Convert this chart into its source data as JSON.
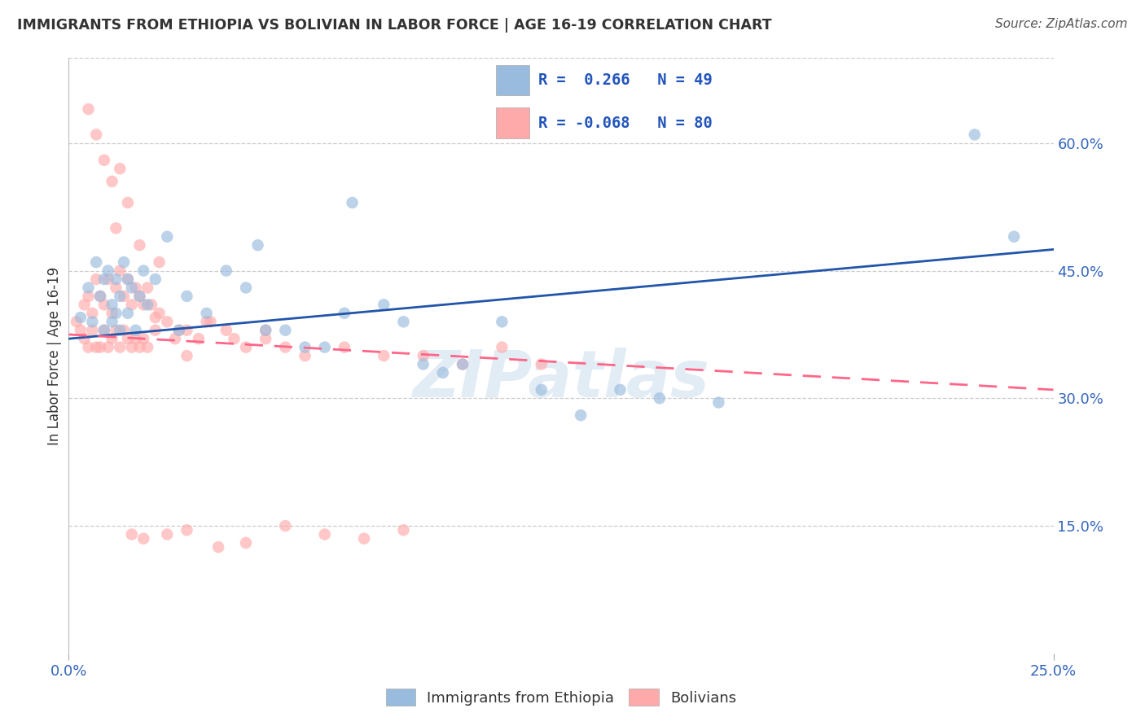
{
  "title": "IMMIGRANTS FROM ETHIOPIA VS BOLIVIAN IN LABOR FORCE | AGE 16-19 CORRELATION CHART",
  "source": "Source: ZipAtlas.com",
  "ylabel": "In Labor Force | Age 16-19",
  "legend_label_blue": "Immigrants from Ethiopia",
  "legend_label_pink": "Bolivians",
  "blue_color": "#99BBDD",
  "pink_color": "#FFAAAA",
  "trendline_blue_color": "#2255AA",
  "trendline_pink_color": "#FF6688",
  "watermark": "ZIPatlas",
  "xlim": [
    0.0,
    0.25
  ],
  "ylim": [
    0.0,
    0.7
  ],
  "yticks": [
    0.15,
    0.3,
    0.45,
    0.6
  ],
  "ytick_labels": [
    "15.0%",
    "30.0%",
    "45.0%",
    "60.0%"
  ],
  "xtick_left": "0.0%",
  "xtick_right": "25.0%",
  "blue_trend_x0": 0.0,
  "blue_trend_y0": 0.37,
  "blue_trend_x1": 0.25,
  "blue_trend_y1": 0.475,
  "pink_trend_x0": 0.0,
  "pink_trend_y0": 0.375,
  "pink_trend_x1": 0.25,
  "pink_trend_y1": 0.31,
  "legend_line1": "R =  0.266   N = 49",
  "legend_line2": "R = -0.068   N = 80",
  "blue_x": [
    0.003,
    0.005,
    0.006,
    0.007,
    0.008,
    0.009,
    0.009,
    0.01,
    0.011,
    0.011,
    0.012,
    0.012,
    0.013,
    0.013,
    0.014,
    0.015,
    0.015,
    0.016,
    0.017,
    0.018,
    0.019,
    0.02,
    0.022,
    0.025,
    0.028,
    0.03,
    0.035,
    0.04,
    0.045,
    0.05,
    0.055,
    0.06,
    0.065,
    0.07,
    0.08,
    0.09,
    0.1,
    0.11,
    0.12,
    0.13,
    0.14,
    0.15,
    0.165,
    0.072,
    0.085,
    0.095,
    0.048,
    0.23,
    0.24
  ],
  "blue_y": [
    0.395,
    0.43,
    0.39,
    0.46,
    0.42,
    0.44,
    0.38,
    0.45,
    0.41,
    0.39,
    0.44,
    0.4,
    0.42,
    0.38,
    0.46,
    0.44,
    0.4,
    0.43,
    0.38,
    0.42,
    0.45,
    0.41,
    0.44,
    0.49,
    0.38,
    0.42,
    0.4,
    0.45,
    0.43,
    0.38,
    0.38,
    0.36,
    0.36,
    0.4,
    0.41,
    0.34,
    0.34,
    0.39,
    0.31,
    0.28,
    0.31,
    0.3,
    0.295,
    0.53,
    0.39,
    0.33,
    0.48,
    0.61,
    0.49
  ],
  "pink_x": [
    0.002,
    0.003,
    0.004,
    0.004,
    0.005,
    0.005,
    0.006,
    0.006,
    0.007,
    0.007,
    0.008,
    0.008,
    0.009,
    0.009,
    0.01,
    0.01,
    0.011,
    0.011,
    0.012,
    0.012,
    0.013,
    0.013,
    0.014,
    0.014,
    0.015,
    0.015,
    0.016,
    0.016,
    0.017,
    0.017,
    0.018,
    0.018,
    0.019,
    0.019,
    0.02,
    0.02,
    0.021,
    0.022,
    0.023,
    0.025,
    0.027,
    0.03,
    0.033,
    0.036,
    0.04,
    0.045,
    0.05,
    0.055,
    0.06,
    0.07,
    0.08,
    0.09,
    0.1,
    0.11,
    0.12,
    0.022,
    0.028,
    0.035,
    0.042,
    0.05,
    0.005,
    0.007,
    0.009,
    0.011,
    0.013,
    0.015,
    0.012,
    0.018,
    0.023,
    0.03,
    0.016,
    0.019,
    0.025,
    0.03,
    0.038,
    0.045,
    0.055,
    0.065,
    0.075,
    0.085
  ],
  "pink_y": [
    0.39,
    0.38,
    0.41,
    0.37,
    0.42,
    0.36,
    0.4,
    0.38,
    0.44,
    0.36,
    0.42,
    0.36,
    0.41,
    0.38,
    0.44,
    0.36,
    0.4,
    0.37,
    0.43,
    0.38,
    0.45,
    0.36,
    0.42,
    0.38,
    0.44,
    0.37,
    0.41,
    0.36,
    0.43,
    0.37,
    0.42,
    0.36,
    0.41,
    0.37,
    0.43,
    0.36,
    0.41,
    0.38,
    0.4,
    0.39,
    0.37,
    0.38,
    0.37,
    0.39,
    0.38,
    0.36,
    0.37,
    0.36,
    0.35,
    0.36,
    0.35,
    0.35,
    0.34,
    0.36,
    0.34,
    0.395,
    0.38,
    0.39,
    0.37,
    0.38,
    0.64,
    0.61,
    0.58,
    0.555,
    0.57,
    0.53,
    0.5,
    0.48,
    0.46,
    0.35,
    0.14,
    0.135,
    0.14,
    0.145,
    0.125,
    0.13,
    0.15,
    0.14,
    0.135,
    0.145
  ]
}
